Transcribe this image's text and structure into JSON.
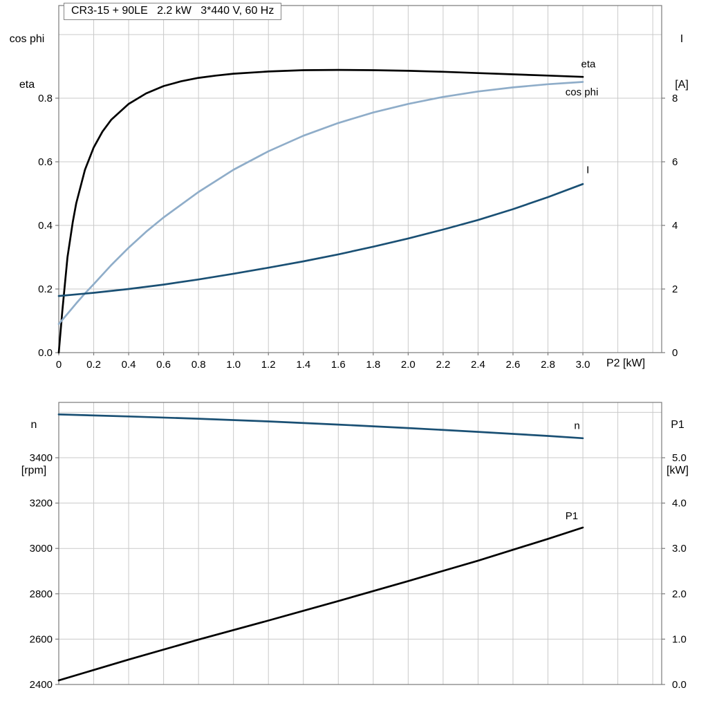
{
  "title_box": {
    "text": "CR3-15 + 90LE   2.2 kW   3*440 V, 60 Hz"
  },
  "axis_corner_labels": {
    "top_left_line1": "cos phi",
    "top_left_line2": "eta",
    "top_right_line1": "I",
    "top_right_line2": "[A]",
    "x_axis_label": "P2 [kW]",
    "bottom_left_line1": "n",
    "bottom_left_line2": "[rpm]",
    "bottom_right_line1": "P1",
    "bottom_right_line2": "[kW]"
  },
  "colors": {
    "background": "#ffffff",
    "grid": "#c9c9c9",
    "frame": "#7a7a7a",
    "tick": "#7a7a7a",
    "text": "#000000",
    "eta_curve": "#000000",
    "cos_phi_curve": "#8fadc9",
    "current_curve": "#1a5074",
    "speed_curve": "#1a5074",
    "p1_curve": "#000000"
  },
  "chart_data": [
    {
      "type": "line",
      "id": "top-chart",
      "title": "CR3-15 + 90LE   2.2 kW   3*440 V, 60 Hz",
      "xlabel": "P2 [kW]",
      "ylabel_left": "cos phi / eta",
      "ylabel_right": "I [A]",
      "xlim": [
        0,
        3.451
      ],
      "ylim_left": [
        0,
        1.0913
      ],
      "ylim_right": [
        0,
        10.913
      ],
      "grid": true,
      "legend_position": "inline-right",
      "xticks": {
        "labels": [
          "0",
          "0.2",
          "0.4",
          "0.6",
          "0.8",
          "1.0",
          "1.2",
          "1.4",
          "1.6",
          "1.8",
          "2.0",
          "2.2",
          "2.4",
          "2.6",
          "2.8",
          "3.0"
        ],
        "values": [
          0,
          0.2,
          0.4,
          0.6,
          0.8,
          1.0,
          1.2,
          1.4,
          1.6,
          1.8,
          2.0,
          2.2,
          2.4,
          2.6,
          2.8,
          3.0
        ]
      },
      "xgrid": [
        0.2,
        0.4,
        0.6,
        0.8,
        1.0,
        1.2,
        1.4,
        1.6,
        1.8,
        2.0,
        2.2,
        2.4,
        2.6,
        2.8,
        3.0,
        3.2,
        3.4
      ],
      "yticks_left": {
        "labels": [
          "0.0",
          "0.2",
          "0.4",
          "0.6",
          "0.8"
        ],
        "values": [
          0,
          0.2,
          0.4,
          0.6,
          0.8
        ]
      },
      "ygrid": [
        0.2,
        0.4,
        0.6,
        0.8,
        1.0
      ],
      "yticks_right": {
        "labels": [
          "0",
          "2",
          "4",
          "6",
          "8"
        ],
        "values": [
          0,
          2,
          4,
          6,
          8
        ]
      },
      "series": [
        {
          "name": "eta",
          "label": "eta",
          "axis": "left",
          "color": "#000000",
          "width": 2.7,
          "label_at": [
            2.99,
            0.908
          ],
          "x": [
            0,
            0.02,
            0.05,
            0.08,
            0.1,
            0.15,
            0.2,
            0.25,
            0.3,
            0.4,
            0.5,
            0.6,
            0.7,
            0.8,
            0.9,
            1.0,
            1.2,
            1.4,
            1.6,
            1.8,
            2.0,
            2.2,
            2.4,
            2.6,
            2.8,
            3.0
          ],
          "y": [
            0,
            0.13,
            0.3,
            0.41,
            0.47,
            0.575,
            0.645,
            0.695,
            0.732,
            0.782,
            0.815,
            0.838,
            0.853,
            0.864,
            0.871,
            0.877,
            0.884,
            0.888,
            0.889,
            0.888,
            0.886,
            0.883,
            0.879,
            0.875,
            0.871,
            0.867
          ]
        },
        {
          "name": "cos-phi",
          "label": "cos phi",
          "axis": "left",
          "color": "#8fadc9",
          "width": 2.7,
          "label_at": [
            2.9,
            0.82
          ],
          "x": [
            0,
            0.05,
            0.1,
            0.15,
            0.2,
            0.3,
            0.4,
            0.5,
            0.6,
            0.8,
            1.0,
            1.2,
            1.4,
            1.6,
            1.8,
            2.0,
            2.2,
            2.4,
            2.6,
            2.8,
            3.0
          ],
          "y": [
            0.09,
            0.122,
            0.155,
            0.186,
            0.215,
            0.275,
            0.33,
            0.38,
            0.425,
            0.505,
            0.575,
            0.633,
            0.682,
            0.722,
            0.755,
            0.782,
            0.804,
            0.821,
            0.834,
            0.844,
            0.851
          ]
        },
        {
          "name": "current",
          "label": "I",
          "axis": "right",
          "color": "#1a5074",
          "width": 2.7,
          "label_at": [
            3.02,
            5.75
          ],
          "x": [
            0,
            0.2,
            0.4,
            0.6,
            0.8,
            1.0,
            1.2,
            1.4,
            1.6,
            1.8,
            2.0,
            2.2,
            2.4,
            2.6,
            2.8,
            3.0
          ],
          "y": [
            1.78,
            1.88,
            2.0,
            2.14,
            2.3,
            2.48,
            2.67,
            2.87,
            3.09,
            3.33,
            3.59,
            3.87,
            4.17,
            4.51,
            4.89,
            5.3
          ]
        }
      ]
    },
    {
      "type": "line",
      "id": "bottom-chart",
      "title": "",
      "xlabel": "",
      "ylabel_left": "n [rpm]",
      "ylabel_right": "P1 [kW]",
      "xlim": [
        0,
        3.451
      ],
      "ylim_left": [
        2400,
        3644
      ],
      "ylim_right": [
        0,
        6.22
      ],
      "grid": true,
      "legend_position": "inline-right",
      "xticks": {
        "labels": [],
        "values": []
      },
      "xgrid": [
        0.2,
        0.4,
        0.6,
        0.8,
        1.0,
        1.2,
        1.4,
        1.6,
        1.8,
        2.0,
        2.2,
        2.4,
        2.6,
        2.8,
        3.0,
        3.2,
        3.4
      ],
      "yticks_left": {
        "labels": [
          "2400",
          "2600",
          "2800",
          "3000",
          "3200",
          "3400"
        ],
        "values": [
          2400,
          2600,
          2800,
          3000,
          3200,
          3400
        ]
      },
      "ygrid": [
        2600,
        2800,
        3000,
        3200,
        3400,
        3600
      ],
      "yticks_right": {
        "labels": [
          "0.0",
          "1.0",
          "2.0",
          "3.0",
          "4.0",
          "5.0"
        ],
        "values": [
          0,
          1,
          2,
          3,
          4,
          5
        ]
      },
      "series": [
        {
          "name": "speed",
          "label": "n",
          "axis": "left",
          "color": "#1a5074",
          "width": 2.7,
          "label_at": [
            2.95,
            3542
          ],
          "x": [
            0,
            0.4,
            0.8,
            1.2,
            1.6,
            2.0,
            2.4,
            2.8,
            3.0
          ],
          "y": [
            3591,
            3582,
            3572,
            3560,
            3546,
            3531,
            3514,
            3496,
            3486
          ]
        },
        {
          "name": "p1",
          "label": "P1",
          "axis": "right",
          "color": "#000000",
          "width": 2.7,
          "label_at": [
            2.9,
            3.72
          ],
          "x": [
            0,
            0.4,
            0.8,
            1.2,
            1.6,
            2.0,
            2.4,
            2.8,
            3.0
          ],
          "y": [
            0.09,
            0.55,
            0.99,
            1.41,
            1.84,
            2.28,
            2.73,
            3.21,
            3.46
          ]
        }
      ]
    }
  ]
}
